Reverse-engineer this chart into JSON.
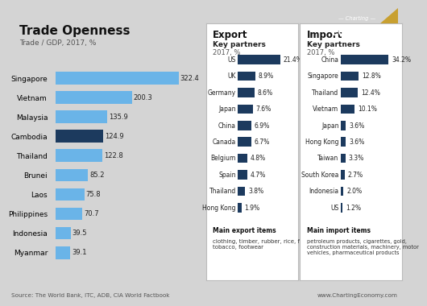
{
  "bg_color": "#d4d4d4",
  "title": "Trade Openness",
  "subtitle": "Trade / GDP, 2017, %",
  "bar_countries": [
    "Singapore",
    "Vietnam",
    "Malaysia",
    "Cambodia",
    "Thailand",
    "Brunei",
    "Laos",
    "Philippines",
    "Indonesia",
    "Myanmar"
  ],
  "bar_values": [
    322.4,
    200.3,
    135.9,
    124.9,
    122.8,
    85.2,
    75.8,
    70.7,
    39.5,
    39.1
  ],
  "bar_colors": [
    "#6ab4e8",
    "#6ab4e8",
    "#6ab4e8",
    "#1c3a5e",
    "#6ab4e8",
    "#6ab4e8",
    "#6ab4e8",
    "#6ab4e8",
    "#6ab4e8",
    "#6ab4e8"
  ],
  "export_partners": [
    "US",
    "UK",
    "Germany",
    "Japan",
    "China",
    "Canada",
    "Belgium",
    "Spain",
    "Thailand",
    "Hong Kong"
  ],
  "export_values": [
    21.4,
    8.9,
    8.6,
    7.6,
    6.9,
    6.7,
    4.8,
    4.7,
    3.8,
    1.9
  ],
  "export_labels": [
    "21.4%",
    "8.9%",
    "8.6%",
    "7.6%",
    "6.9%",
    "6.7%",
    "4.8%",
    "4.7%",
    "3.8%",
    "1.9%"
  ],
  "import_partners": [
    "China",
    "Singapore",
    "Thailand",
    "Vietnam",
    "Japan",
    "Hong Kong",
    "Taiwan",
    "South Korea",
    "Indonesia",
    "US"
  ],
  "import_values": [
    34.2,
    12.8,
    12.4,
    10.1,
    3.6,
    3.6,
    3.3,
    2.7,
    2.0,
    1.2
  ],
  "import_labels": [
    "34.2%",
    "12.8%",
    "12.4%",
    "10.1%",
    "3.6%",
    "3.6%",
    "3.3%",
    "2.7%",
    "2.0%",
    "1.2%"
  ],
  "panel_bar_color": "#1c3a5e",
  "main_export_items": "clothing, timber, rubber, rice, fish,\ntobacco, footwear",
  "main_import_items": "petroleum products, cigarettes, gold,\nconstruction materials, machinery, motor\nvehicles, pharmaceutical products",
  "source_text": "Source: The World Bank, ITC, ADB, CIA World Factbook",
  "website_text": "www.ChartingEconomy.com",
  "logo_bg": "#1c3a5e",
  "logo_accent": "#c8a030"
}
